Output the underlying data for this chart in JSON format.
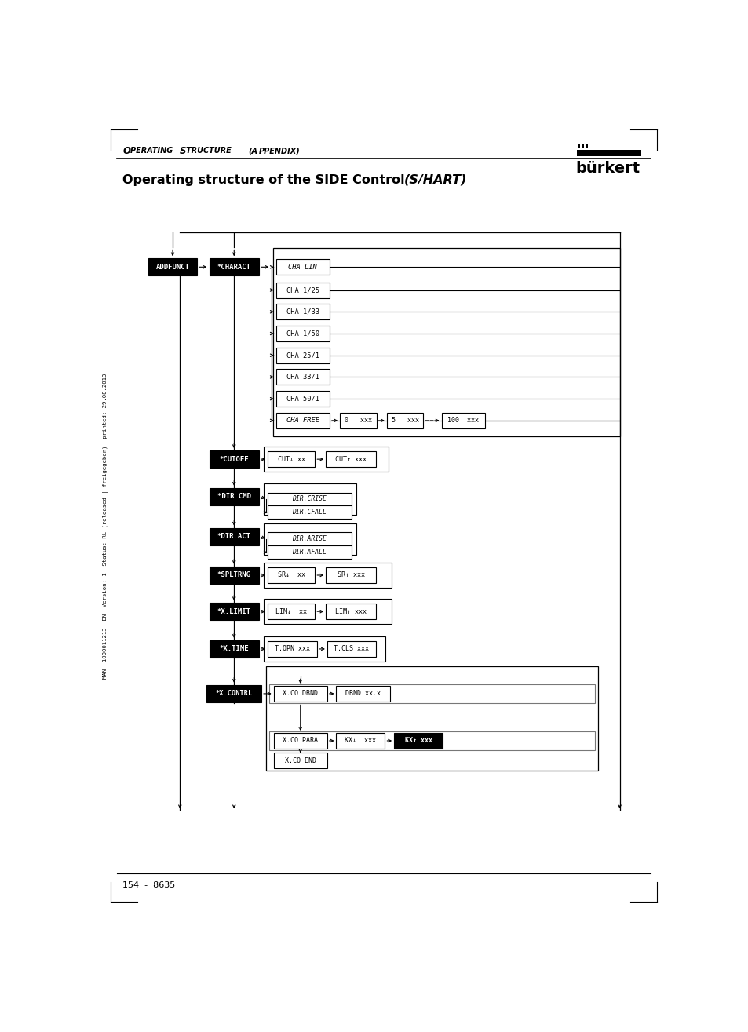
{
  "bg_color": "#ffffff",
  "box_edge": "#000000",
  "dark_box_color": "#000000",
  "dark_box_text": "#ffffff",
  "header_left": "Operating Structure (Appendix)",
  "title_normal": "Operating structure of the SIDE Control ",
  "title_italic": "(S/HART)",
  "footer": "154  -  8635",
  "sidebar_text": "MAN  1000011213  EN  Version: 1  Status: RL (released | freigegeben)  printed: 29.08.2013",
  "cha_labels": [
    "CHA LIN",
    "CHA 1/25",
    "CHA 1/33",
    "CHA 1/50",
    "CHA 25/1",
    "CHA 33/1",
    "CHA 50/1",
    "CHA FREE"
  ],
  "cha_italic": [
    true,
    false,
    false,
    false,
    false,
    false,
    false,
    true
  ]
}
